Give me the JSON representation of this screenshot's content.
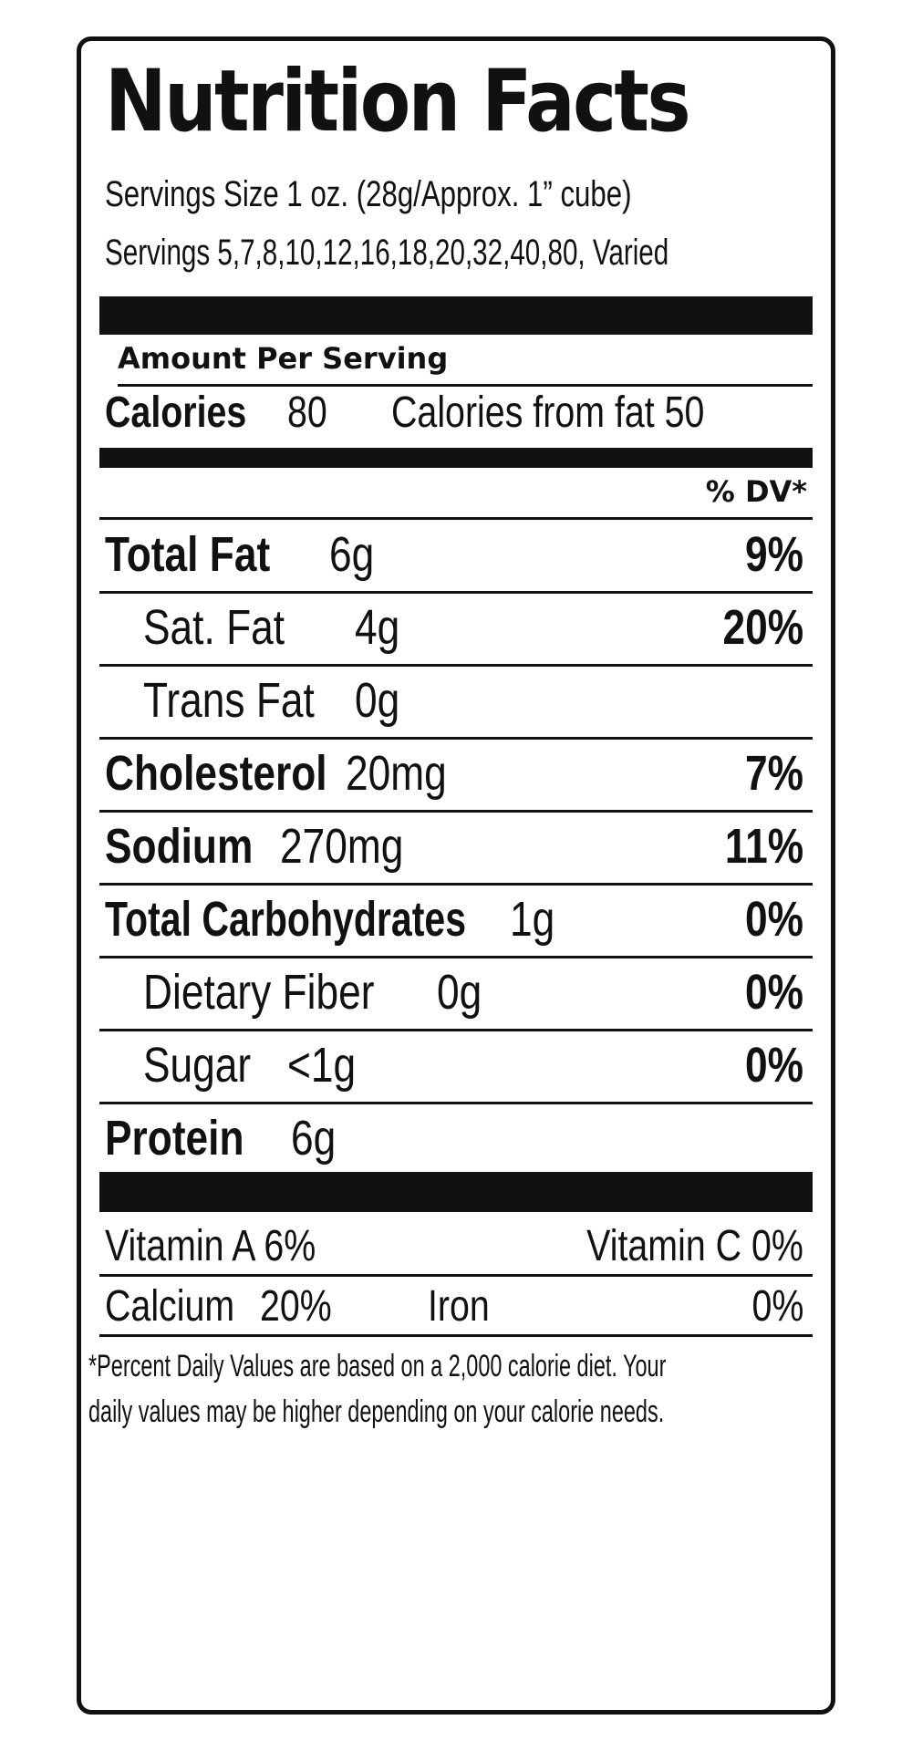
{
  "label": {
    "title": "Nutrition Facts",
    "serving_size": "Servings Size 1 oz. (28g/Approx. 1” cube)",
    "servings": "Servings 5,7,8,10,12,16,18,20,32,40,80, Varied",
    "amount_per_serving": "Amount Per Serving",
    "calories_label": "Calories",
    "calories_value": "80",
    "calories_from_fat": "Calories from fat 50",
    "dv_header": "% DV*",
    "nutrients": [
      {
        "name": "Total Fat",
        "amount": "6g",
        "dv": "9%"
      },
      {
        "name": "Sat. Fat",
        "amount": "4g",
        "dv": "20%"
      },
      {
        "name": "Trans Fat",
        "amount": "0g",
        "dv": ""
      },
      {
        "name": "Cholesterol",
        "amount": "20mg",
        "dv": "7%"
      },
      {
        "name": "Sodium",
        "amount": "270mg",
        "dv": "11%"
      },
      {
        "name": "Total Carbohydrates",
        "amount": "1g",
        "dv": "0%"
      },
      {
        "name": "Dietary Fiber",
        "amount": "0g",
        "dv": "0%"
      },
      {
        "name": "Sugar",
        "amount": "<1g",
        "dv": "0%"
      },
      {
        "name": "Protein",
        "amount": "6g",
        "dv": ""
      }
    ],
    "vitamins": [
      {
        "left": "Vitamin A 6%",
        "right": "Vitamin C 0%"
      },
      {
        "left_name": "Calcium",
        "left_value": "20%",
        "right_name": "Iron",
        "right_value": "0%"
      }
    ],
    "footnote_line1": "*Percent Daily Values are based on a 2,000 calorie diet. Your",
    "footnote_line2": "daily values may be higher depending on your calorie needs."
  }
}
